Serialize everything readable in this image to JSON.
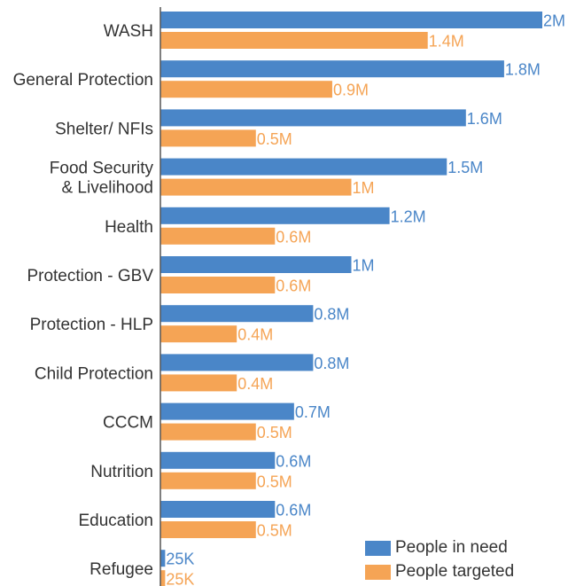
{
  "chart_data": {
    "type": "bar",
    "orientation": "horizontal",
    "categories": [
      "WASH",
      "General Protection",
      "Shelter/ NFIs",
      "Food Security & Livelihood",
      "Health",
      "Protection - GBV",
      "Protection - HLP",
      "Child Protection",
      "CCCM",
      "Nutrition",
      "Education",
      "Refugee"
    ],
    "category_lines": [
      [
        "WASH"
      ],
      [
        "General Protection"
      ],
      [
        "Shelter/ NFIs"
      ],
      [
        "Food Security",
        "& Livelihood"
      ],
      [
        "Health"
      ],
      [
        "Protection - GBV"
      ],
      [
        "Protection - HLP"
      ],
      [
        "Child Protection"
      ],
      [
        "CCCM"
      ],
      [
        "Nutrition"
      ],
      [
        "Education"
      ],
      [
        "Refugee"
      ]
    ],
    "series": [
      {
        "name": "People in need",
        "color": "#4a86c8",
        "values": [
          2000000,
          1800000,
          1600000,
          1500000,
          1200000,
          1000000,
          800000,
          800000,
          700000,
          600000,
          600000,
          25000
        ],
        "labels": [
          "2M",
          "1.8M",
          "1.6M",
          "1.5M",
          "1.2M",
          "1M",
          "0.8M",
          "0.8M",
          "0.7M",
          "0.6M",
          "0.6M",
          "25K"
        ]
      },
      {
        "name": "People targeted",
        "color": "#f5a455",
        "values": [
          1400000,
          900000,
          500000,
          1000000,
          600000,
          600000,
          400000,
          400000,
          500000,
          500000,
          500000,
          25000
        ],
        "labels": [
          "1.4M",
          "0.9M",
          "0.5M",
          "1M",
          "0.6M",
          "0.6M",
          "0.4M",
          "0.4M",
          "0.5M",
          "0.5M",
          "0.5M",
          "25K"
        ]
      }
    ],
    "xlim": [
      0,
      2000000
    ],
    "grid": false,
    "legend_position": "bottom-right"
  }
}
